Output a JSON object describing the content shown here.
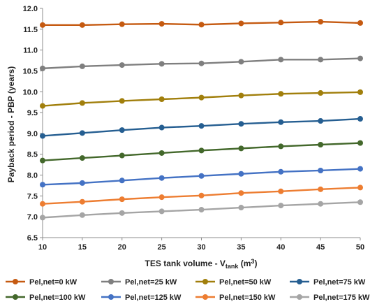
{
  "chart_data": {
    "type": "line",
    "x": [
      10,
      15,
      20,
      25,
      30,
      35,
      40,
      45,
      50
    ],
    "xlim": [
      10,
      50
    ],
    "ylim": [
      6.5,
      12.0
    ],
    "x_ticks": [
      "10",
      "15",
      "20",
      "25",
      "30",
      "35",
      "40",
      "45",
      "50"
    ],
    "y_ticks": [
      "6.5",
      "7.0",
      "7.5",
      "8.0",
      "8.5",
      "9.0",
      "9.5",
      "10.0",
      "10.5",
      "11.0",
      "11.5",
      "12.0"
    ],
    "xlabel_main": "TES tank volume - V",
    "xlabel_sub": "tank",
    "xlabel_unit_open": " (m",
    "xlabel_unit_sup": "3",
    "xlabel_unit_close": ")",
    "ylabel": "Payback period - PBP (years)",
    "grid": false,
    "legend_position": "bottom",
    "series": [
      {
        "name": "Pel,net=0 kW",
        "color": "#c55a11",
        "values": [
          11.6,
          11.6,
          11.62,
          11.63,
          11.61,
          11.64,
          11.66,
          11.68,
          11.65
        ]
      },
      {
        "name": "Pel,net=25 kW",
        "color": "#7f7f7f",
        "values": [
          10.56,
          10.61,
          10.64,
          10.67,
          10.68,
          10.72,
          10.77,
          10.77,
          10.8
        ]
      },
      {
        "name": "Pel,net=50 kW",
        "color": "#a17f0c",
        "values": [
          9.66,
          9.73,
          9.78,
          9.82,
          9.86,
          9.91,
          9.95,
          9.97,
          9.99
        ]
      },
      {
        "name": "Pel,net=75 kW",
        "color": "#255e91",
        "values": [
          8.94,
          9.01,
          9.08,
          9.14,
          9.18,
          9.23,
          9.27,
          9.3,
          9.35
        ]
      },
      {
        "name": "Pel,net=100 kW",
        "color": "#43682b",
        "values": [
          8.35,
          8.41,
          8.47,
          8.53,
          8.59,
          8.64,
          8.69,
          8.73,
          8.77
        ]
      },
      {
        "name": "Pel,net=125 kW",
        "color": "#4472c4",
        "values": [
          7.77,
          7.81,
          7.87,
          7.93,
          7.98,
          8.03,
          8.08,
          8.11,
          8.15
        ]
      },
      {
        "name": "Pel,net=150 kW",
        "color": "#ed7d31",
        "values": [
          7.31,
          7.36,
          7.42,
          7.47,
          7.51,
          7.57,
          7.61,
          7.66,
          7.7
        ]
      },
      {
        "name": "Pel,net=175 kW",
        "color": "#a5a5a5",
        "values": [
          6.98,
          7.04,
          7.09,
          7.13,
          7.17,
          7.22,
          7.27,
          7.31,
          7.35
        ]
      }
    ]
  }
}
